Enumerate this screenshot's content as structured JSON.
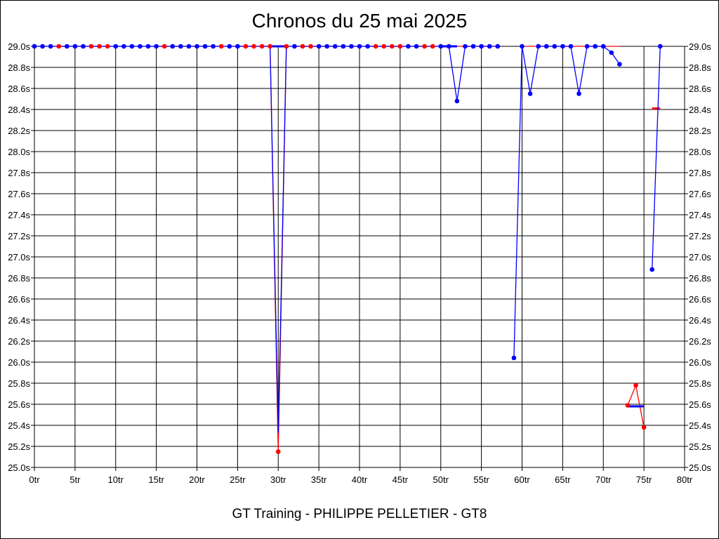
{
  "chart_data": {
    "type": "line",
    "title": "Chronos du 25 mai 2025",
    "subtitle": "GT Training - PHILIPPE PELLETIER - GT8",
    "xlabel": "",
    "ylabel": "",
    "xlim": [
      0,
      80
    ],
    "ylim": [
      25.0,
      29.0
    ],
    "x_ticks": [
      "0tr",
      "5tr",
      "10tr",
      "15tr",
      "20tr",
      "25tr",
      "30tr",
      "35tr",
      "40tr",
      "45tr",
      "50tr",
      "55tr",
      "60tr",
      "65tr",
      "70tr",
      "75tr",
      "80tr"
    ],
    "y_ticks": [
      "25.0s",
      "25.2s",
      "25.4s",
      "25.6s",
      "25.8s",
      "26.0s",
      "26.2s",
      "26.4s",
      "26.6s",
      "26.8s",
      "27.0s",
      "27.2s",
      "27.4s",
      "27.6s",
      "27.8s",
      "28.0s",
      "28.2s",
      "28.4s",
      "28.6s",
      "28.8s",
      "29.0s"
    ],
    "grid": true,
    "colors": {
      "red": "#ff0000",
      "blue": "#0000ff",
      "grid": "#000000"
    },
    "series": [
      {
        "color": "#ff0000",
        "points": [
          [
            0,
            29.0
          ],
          [
            1,
            29.0
          ],
          [
            2,
            29.0
          ],
          [
            3,
            29.0
          ],
          [
            4,
            29.0
          ],
          [
            5,
            29.0
          ],
          [
            6,
            29.0
          ],
          [
            7,
            29.0
          ],
          [
            8,
            29.0
          ],
          [
            9,
            29.0
          ],
          [
            10,
            29.0
          ],
          [
            11,
            29.0
          ],
          [
            12,
            29.0
          ],
          [
            13,
            29.0
          ],
          [
            14,
            29.0
          ],
          [
            15,
            29.0
          ],
          [
            16,
            29.0
          ],
          [
            17,
            29.0
          ],
          [
            18,
            29.0
          ],
          [
            19,
            29.0
          ],
          [
            20,
            29.0
          ],
          [
            21,
            29.0
          ],
          [
            22,
            29.0
          ],
          [
            23,
            29.0
          ],
          [
            24,
            29.0
          ],
          [
            25,
            29.0
          ],
          [
            26,
            29.0
          ],
          [
            27,
            29.0
          ],
          [
            28,
            29.0
          ],
          [
            29,
            29.0
          ],
          [
            30,
            25.15
          ],
          [
            31,
            29.0
          ],
          [
            32,
            29.0
          ],
          [
            33,
            29.0
          ],
          [
            34,
            29.0
          ],
          [
            35,
            29.0
          ],
          [
            36,
            29.0
          ],
          [
            37,
            29.0
          ],
          [
            38,
            29.0
          ],
          [
            39,
            29.0
          ],
          [
            40,
            29.0
          ],
          [
            41,
            29.0
          ],
          [
            42,
            29.0
          ],
          [
            43,
            29.0
          ],
          [
            44,
            29.0
          ],
          [
            45,
            29.0
          ],
          [
            46,
            29.0
          ],
          [
            47,
            29.0
          ],
          [
            48,
            29.0
          ],
          [
            49,
            29.0
          ],
          [
            50,
            29.0
          ],
          [
            51,
            29.0
          ],
          [
            52,
            29.0
          ],
          [
            53,
            29.0
          ],
          [
            54,
            29.0
          ],
          [
            55,
            29.0
          ],
          [
            56,
            29.0
          ],
          [
            57,
            29.0
          ],
          null,
          [
            60,
            29.0
          ],
          [
            61,
            29.0
          ],
          [
            62,
            29.0
          ],
          [
            63,
            29.0
          ],
          [
            64,
            29.0
          ],
          [
            65,
            29.0
          ],
          [
            66,
            29.0
          ],
          [
            67,
            29.0
          ],
          [
            68,
            29.0
          ],
          [
            69,
            29.0
          ],
          [
            70,
            29.0
          ],
          [
            71,
            29.0
          ],
          [
            72,
            29.0
          ],
          null,
          [
            73,
            25.59
          ],
          [
            74,
            25.78
          ],
          [
            75,
            25.38
          ]
        ],
        "dots": [
          [
            3,
            29.0
          ],
          [
            7,
            29.0
          ],
          [
            8,
            29.0
          ],
          [
            9,
            29.0
          ],
          [
            16,
            29.0
          ],
          [
            23,
            29.0
          ],
          [
            26,
            29.0
          ],
          [
            27,
            29.0
          ],
          [
            28,
            29.0
          ],
          [
            29,
            29.0
          ],
          [
            30,
            25.15
          ],
          [
            31,
            29.0
          ],
          [
            33,
            29.0
          ],
          [
            34,
            29.0
          ],
          [
            42,
            29.0
          ],
          [
            43,
            29.0
          ],
          [
            44,
            29.0
          ],
          [
            45,
            29.0
          ],
          [
            48,
            29.0
          ],
          [
            49,
            29.0
          ],
          [
            73,
            25.59
          ],
          [
            74,
            25.78
          ],
          [
            75,
            25.38
          ]
        ],
        "avg_segments": [
          [
            76,
            77,
            28.41
          ]
        ]
      },
      {
        "color": "#0000ff",
        "points": [
          [
            0,
            29.0
          ],
          [
            1,
            29.0
          ],
          [
            2,
            29.0
          ],
          [
            3,
            29.0
          ],
          [
            4,
            29.0
          ],
          [
            5,
            29.0
          ],
          [
            6,
            29.0
          ],
          [
            7,
            29.0
          ],
          [
            8,
            29.0
          ],
          [
            9,
            29.0
          ],
          [
            10,
            29.0
          ],
          [
            11,
            29.0
          ],
          [
            12,
            29.0
          ],
          [
            13,
            29.0
          ],
          [
            14,
            29.0
          ],
          [
            15,
            29.0
          ],
          [
            16,
            29.0
          ],
          [
            17,
            29.0
          ],
          [
            18,
            29.0
          ],
          [
            19,
            29.0
          ],
          [
            20,
            29.0
          ],
          [
            21,
            29.0
          ],
          [
            22,
            29.0
          ],
          [
            23,
            29.0
          ],
          [
            24,
            29.0
          ],
          [
            25,
            29.0
          ],
          [
            26,
            29.0
          ],
          [
            27,
            29.0
          ],
          [
            28,
            29.0
          ],
          [
            29,
            29.0
          ],
          [
            30,
            25.33
          ],
          [
            31,
            29.0
          ],
          [
            32,
            29.0
          ],
          [
            33,
            29.0
          ],
          [
            34,
            29.0
          ],
          [
            35,
            29.0
          ],
          [
            36,
            29.0
          ],
          [
            37,
            29.0
          ],
          [
            38,
            29.0
          ],
          [
            39,
            29.0
          ],
          [
            40,
            29.0
          ],
          [
            41,
            29.0
          ],
          [
            42,
            29.0
          ],
          [
            43,
            29.0
          ],
          [
            44,
            29.0
          ],
          [
            45,
            29.0
          ],
          [
            46,
            29.0
          ],
          [
            47,
            29.0
          ],
          [
            48,
            29.0
          ],
          [
            49,
            29.0
          ],
          [
            50,
            29.0
          ],
          [
            51,
            29.0
          ],
          [
            52,
            28.48
          ],
          [
            53,
            29.0
          ],
          [
            54,
            29.0
          ],
          [
            55,
            29.0
          ],
          [
            56,
            29.0
          ],
          [
            57,
            29.0
          ],
          null,
          [
            59,
            26.04
          ],
          [
            60,
            29.0
          ],
          [
            61,
            28.55
          ],
          [
            62,
            29.0
          ],
          [
            63,
            29.0
          ],
          [
            64,
            29.0
          ],
          [
            65,
            29.0
          ],
          [
            66,
            29.0
          ],
          [
            67,
            28.55
          ],
          [
            68,
            29.0
          ],
          [
            69,
            29.0
          ],
          [
            70,
            29.0
          ],
          [
            71,
            28.94
          ],
          [
            72,
            28.83
          ],
          null,
          [
            76,
            26.88
          ],
          [
            77,
            29.0
          ]
        ],
        "dots": [
          [
            0,
            29.0
          ],
          [
            1,
            29.0
          ],
          [
            2,
            29.0
          ],
          [
            4,
            29.0
          ],
          [
            5,
            29.0
          ],
          [
            6,
            29.0
          ],
          [
            10,
            29.0
          ],
          [
            11,
            29.0
          ],
          [
            12,
            29.0
          ],
          [
            13,
            29.0
          ],
          [
            14,
            29.0
          ],
          [
            15,
            29.0
          ],
          [
            17,
            29.0
          ],
          [
            18,
            29.0
          ],
          [
            19,
            29.0
          ],
          [
            20,
            29.0
          ],
          [
            21,
            29.0
          ],
          [
            22,
            29.0
          ],
          [
            24,
            29.0
          ],
          [
            25,
            29.0
          ],
          [
            32,
            29.0
          ],
          [
            35,
            29.0
          ],
          [
            36,
            29.0
          ],
          [
            37,
            29.0
          ],
          [
            38,
            29.0
          ],
          [
            39,
            29.0
          ],
          [
            40,
            29.0
          ],
          [
            41,
            29.0
          ],
          [
            46,
            29.0
          ],
          [
            47,
            29.0
          ],
          [
            50,
            29.0
          ],
          [
            51,
            29.0
          ],
          [
            52,
            28.48
          ],
          [
            53,
            29.0
          ],
          [
            54,
            29.0
          ],
          [
            55,
            29.0
          ],
          [
            56,
            29.0
          ],
          [
            57,
            29.0
          ],
          [
            59,
            26.04
          ],
          [
            60,
            29.0
          ],
          [
            61,
            28.55
          ],
          [
            62,
            29.0
          ],
          [
            63,
            29.0
          ],
          [
            64,
            29.0
          ],
          [
            65,
            29.0
          ],
          [
            66,
            29.0
          ],
          [
            67,
            28.55
          ],
          [
            68,
            29.0
          ],
          [
            69,
            29.0
          ],
          [
            70,
            29.0
          ],
          [
            71,
            28.94
          ],
          [
            72,
            28.83
          ],
          [
            76,
            26.88
          ],
          [
            77,
            29.0
          ]
        ],
        "avg_segments": [
          [
            29,
            31,
            29.0
          ],
          [
            50,
            52,
            29.0
          ],
          [
            73,
            75,
            25.58
          ]
        ]
      }
    ]
  }
}
